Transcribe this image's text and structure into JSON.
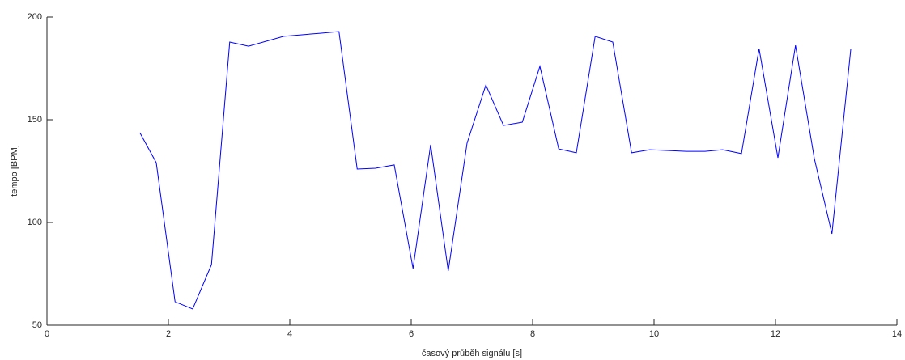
{
  "chart_data": {
    "type": "line",
    "x_label": "časový průběh signálu [s]",
    "y_label": "tempo [BPM]",
    "x": [
      1.53,
      1.8,
      2.11,
      2.4,
      2.71,
      3.01,
      3.32,
      3.9,
      4.5,
      4.81,
      5.11,
      5.41,
      5.72,
      6.03,
      6.32,
      6.61,
      6.92,
      7.23,
      7.52,
      7.83,
      8.12,
      8.43,
      8.72,
      9.03,
      9.32,
      9.63,
      9.93,
      10.24,
      10.53,
      10.84,
      11.13,
      11.44,
      11.73,
      12.04,
      12.33,
      12.64,
      12.93,
      13.24
    ],
    "series": [
      {
        "color": "#0000ff",
        "values": [
          143.7,
          129.1,
          61.4,
          57.9,
          79.5,
          187.8,
          185.8,
          190.6,
          192.1,
          192.9,
          126,
          126.4,
          128,
          77.6,
          137.8,
          76.4,
          138.6,
          166.9,
          147.2,
          148.8,
          176,
          135.8,
          133.9,
          190.6,
          187.8,
          133.9,
          135.4,
          135,
          134.6,
          134.6,
          135.4,
          133.5,
          184.6,
          131.5,
          186.2,
          131.1,
          94.5,
          184.3
        ]
      }
    ],
    "xlim": [
      0,
      14
    ],
    "xticks": [
      0,
      2,
      4,
      6,
      8,
      10,
      12,
      14
    ],
    "ylim": [
      50,
      200
    ],
    "yticks": [
      50,
      100,
      150,
      200
    ],
    "grid": false
  }
}
